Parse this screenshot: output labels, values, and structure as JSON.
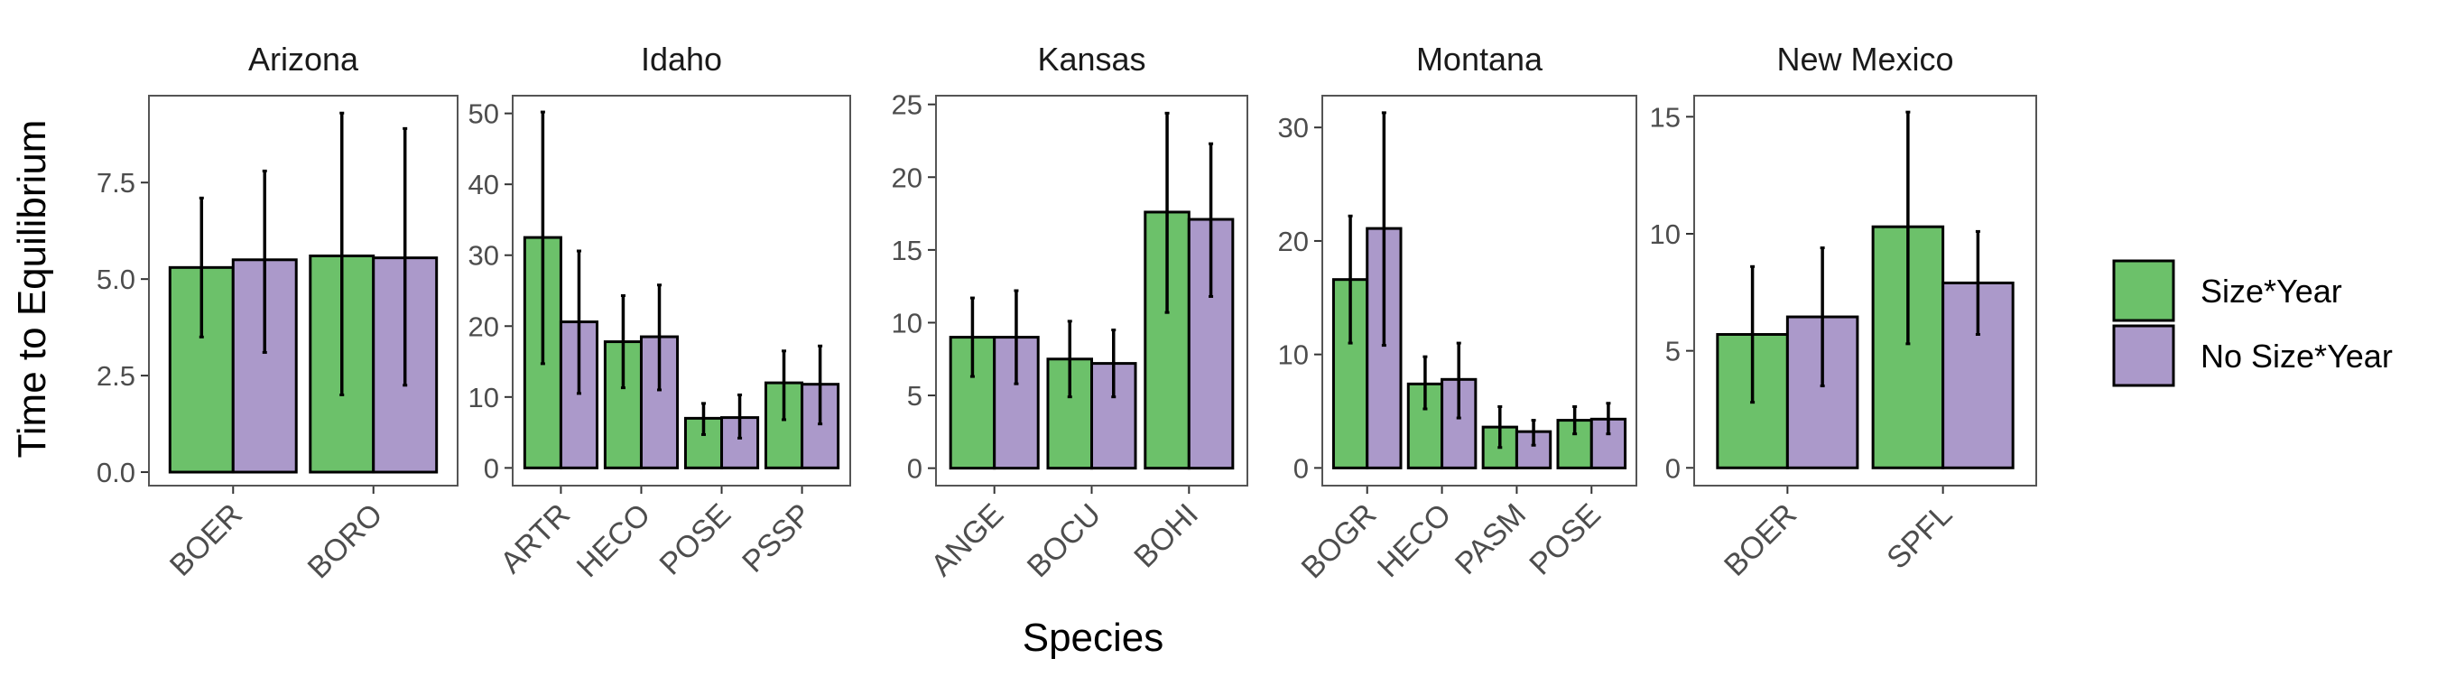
{
  "chart_data": {
    "type": "bar",
    "xlabel": "Species",
    "ylabel": "Time to Equilibrium",
    "legend": {
      "position": "right",
      "entries": [
        {
          "name": "Size*Year",
          "color": "#6cc16a"
        },
        {
          "name": "No Size*Year",
          "color": "#ab99ca"
        }
      ]
    },
    "grid": false,
    "series_names": [
      "Size*Year",
      "No Size*Year"
    ],
    "panels": [
      {
        "title": "Arizona",
        "ylim": [
          -0.35,
          9.75
        ],
        "yticks": [
          0,
          2.5,
          5,
          7.5
        ],
        "ytick_labels": [
          "0.0",
          "2.5",
          "5.0",
          "7.5"
        ],
        "categories": [
          "BOER",
          "BORO"
        ],
        "series": [
          {
            "name": "Size*Year",
            "values": [
              5.3,
              5.6
            ],
            "err_low": [
              3.5,
              2.0
            ],
            "err_high": [
              7.1,
              9.3
            ]
          },
          {
            "name": "No Size*Year",
            "values": [
              5.5,
              5.55
            ],
            "err_low": [
              3.1,
              2.25
            ],
            "err_high": [
              7.8,
              8.9
            ]
          }
        ]
      },
      {
        "title": "Idaho",
        "ylim": [
          -2.5,
          52.5
        ],
        "yticks": [
          0,
          10,
          20,
          30,
          40,
          50
        ],
        "ytick_labels": [
          "0",
          "10",
          "20",
          "30",
          "40",
          "50"
        ],
        "categories": [
          "ARTR",
          "HECO",
          "POSE",
          "PSSP"
        ],
        "series": [
          {
            "name": "Size*Year",
            "values": [
              32.5,
              17.8,
              7.0,
              12.0
            ],
            "err_low": [
              14.7,
              11.3,
              4.7,
              6.8
            ],
            "err_high": [
              50.2,
              24.3,
              9.1,
              16.5
            ]
          },
          {
            "name": "No Size*Year",
            "values": [
              20.6,
              18.5,
              7.1,
              11.8
            ],
            "err_low": [
              10.5,
              11.0,
              4.2,
              6.2
            ],
            "err_high": [
              30.6,
              25.8,
              10.3,
              17.2
            ]
          }
        ]
      },
      {
        "title": "Kansas",
        "ylim": [
          -1.2,
          25.6
        ],
        "yticks": [
          0,
          5,
          10,
          15,
          20,
          25
        ],
        "ytick_labels": [
          "0",
          "5",
          "10",
          "15",
          "20",
          "25"
        ],
        "categories": [
          "ANGE",
          "BOCU",
          "BOHI"
        ],
        "series": [
          {
            "name": "Size*Year",
            "values": [
              9.0,
              7.5,
              17.6
            ],
            "err_low": [
              6.3,
              4.9,
              10.7
            ],
            "err_high": [
              11.7,
              10.1,
              24.4
            ]
          },
          {
            "name": "No Size*Year",
            "values": [
              9.0,
              7.2,
              17.1
            ],
            "err_low": [
              5.8,
              4.9,
              11.8
            ],
            "err_high": [
              12.2,
              9.5,
              22.3
            ]
          }
        ]
      },
      {
        "title": "Montana",
        "ylim": [
          -1.56,
          32.8
        ],
        "yticks": [
          0,
          10,
          20,
          30
        ],
        "ytick_labels": [
          "0",
          "10",
          "20",
          "30"
        ],
        "categories": [
          "BOGR",
          "HECO",
          "PASM",
          "POSE"
        ],
        "series": [
          {
            "name": "Size*Year",
            "values": [
              16.6,
              7.4,
              3.6,
              4.2
            ],
            "err_low": [
              11.0,
              5.2,
              1.8,
              3.0
            ],
            "err_high": [
              22.2,
              9.8,
              5.4,
              5.4
            ]
          },
          {
            "name": "No Size*Year",
            "values": [
              21.1,
              7.8,
              3.2,
              4.3
            ],
            "err_low": [
              10.8,
              4.4,
              2.0,
              3.0
            ],
            "err_high": [
              31.3,
              11.0,
              4.2,
              5.7
            ]
          }
        ]
      },
      {
        "title": "New Mexico",
        "ylim": [
          -0.76,
          15.9
        ],
        "yticks": [
          0,
          5,
          10,
          15
        ],
        "ytick_labels": [
          "0",
          "5",
          "10",
          "15"
        ],
        "categories": [
          "BOER",
          "SPFL"
        ],
        "series": [
          {
            "name": "Size*Year",
            "values": [
              5.7,
              10.3
            ],
            "err_low": [
              2.8,
              5.3
            ],
            "err_high": [
              8.6,
              15.2
            ]
          },
          {
            "name": "No Size*Year",
            "values": [
              6.45,
              7.9
            ],
            "err_low": [
              3.5,
              5.7
            ],
            "err_high": [
              9.4,
              10.1
            ]
          }
        ]
      }
    ]
  }
}
